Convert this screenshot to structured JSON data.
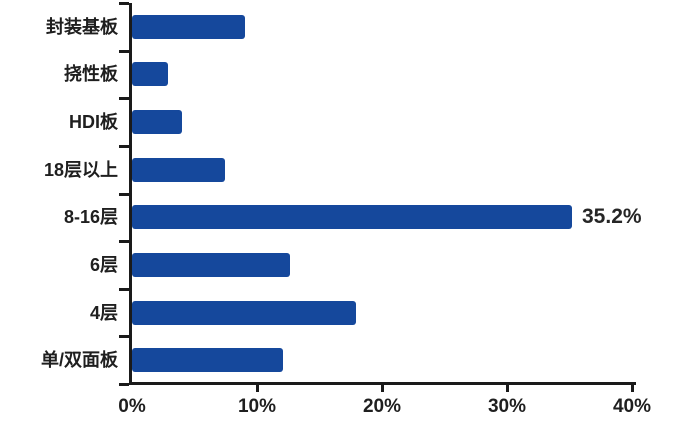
{
  "chart_data": {
    "type": "bar",
    "orientation": "horizontal",
    "title": "",
    "xlabel": "",
    "ylabel": "",
    "categories": [
      "封装基板",
      "挠性板",
      "HDI板",
      "18层以上",
      "8-16层",
      "6层",
      "4层",
      "单/双面板"
    ],
    "values": [
      9.0,
      2.9,
      4.0,
      7.4,
      35.2,
      12.6,
      17.9,
      12.1
    ],
    "data_labels": [
      "",
      "",
      "",
      "",
      "35.2%",
      "",
      "",
      ""
    ],
    "x_axis": {
      "min": 0,
      "max": 40,
      "tick_labels": [
        "0%",
        "10%",
        "20%",
        "30%",
        "40%"
      ],
      "tick_values": [
        0,
        10,
        20,
        30,
        40
      ]
    },
    "grid": false,
    "legend": false,
    "colors": {
      "bar": "#15489C",
      "axis": "#1a1a1a",
      "text": "#1f1f1f"
    }
  }
}
